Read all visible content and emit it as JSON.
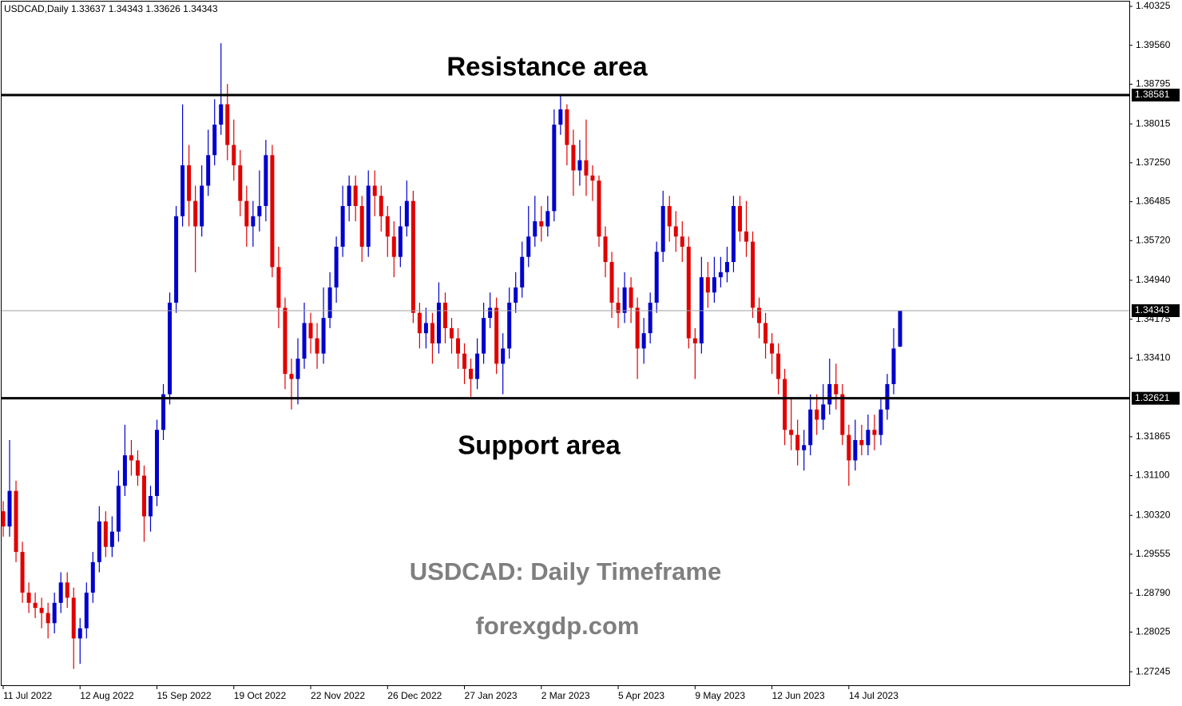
{
  "chart_data": {
    "type": "candlestick",
    "title": "USDCAD,Daily  1.33637 1.34343 1.33626 1.34343",
    "up_color": "#0000cc",
    "down_color": "#e00000",
    "categories": [
      "11 Jul 2022",
      null,
      null,
      null,
      null,
      null,
      null,
      null,
      null,
      null,
      null,
      null,
      "12 Aug 2022",
      null,
      null,
      null,
      null,
      null,
      null,
      null,
      null,
      null,
      null,
      null,
      "15 Sep 2022",
      null,
      null,
      null,
      null,
      null,
      null,
      null,
      null,
      null,
      null,
      null,
      "19 Oct 2022",
      null,
      null,
      null,
      null,
      null,
      null,
      null,
      null,
      null,
      null,
      null,
      "22 Nov 2022",
      null,
      null,
      null,
      null,
      null,
      null,
      null,
      null,
      null,
      null,
      null,
      "26 Dec 2022",
      null,
      null,
      null,
      null,
      null,
      null,
      null,
      null,
      null,
      null,
      null,
      "27 Jan 2023",
      null,
      null,
      null,
      null,
      null,
      null,
      null,
      null,
      null,
      null,
      null,
      "2 Mar 2023",
      null,
      null,
      null,
      null,
      null,
      null,
      null,
      null,
      null,
      null,
      null,
      "5 Apr 2023",
      null,
      null,
      null,
      null,
      null,
      null,
      null,
      null,
      null,
      null,
      null,
      "9 May 2023",
      null,
      null,
      null,
      null,
      null,
      null,
      null,
      null,
      null,
      null,
      null,
      "12 Jun 2023",
      null,
      null,
      null,
      null,
      null,
      null,
      null,
      null,
      null,
      null,
      null,
      "14 Jul 2023",
      null,
      null,
      null,
      null,
      null,
      null,
      null,
      null
    ],
    "open": [
      1.304,
      1.301,
      1.308,
      1.296,
      1.288,
      1.286,
      1.285,
      1.284,
      1.282,
      1.286,
      1.29,
      1.287,
      1.279,
      1.281,
      1.288,
      1.294,
      1.302,
      1.297,
      1.3,
      1.309,
      1.315,
      1.314,
      1.311,
      1.303,
      1.307,
      1.32,
      1.327,
      1.345,
      1.362,
      1.372,
      1.365,
      1.36,
      1.368,
      1.374,
      1.38,
      1.384,
      1.376,
      1.372,
      1.365,
      1.36,
      1.362,
      1.364,
      1.374,
      1.352,
      1.344,
      1.331,
      1.33,
      1.334,
      1.341,
      1.338,
      1.335,
      1.342,
      1.348,
      1.356,
      1.364,
      1.368,
      1.364,
      1.356,
      1.368,
      1.366,
      1.362,
      1.358,
      1.354,
      1.36,
      1.365,
      1.343,
      1.339,
      1.341,
      1.337,
      1.345,
      1.34,
      1.338,
      1.335,
      1.332,
      1.33,
      1.335,
      1.342,
      1.344,
      1.333,
      1.336,
      1.345,
      1.348,
      1.354,
      1.358,
      1.361,
      1.36,
      1.363,
      1.38,
      1.383,
      1.376,
      1.371,
      1.373,
      1.37,
      1.369,
      1.358,
      1.353,
      1.345,
      1.343,
      1.348,
      1.344,
      1.336,
      1.339,
      1.345,
      1.355,
      1.364,
      1.36,
      1.358,
      1.356,
      1.338,
      1.337,
      1.35,
      1.347,
      1.35,
      1.351,
      1.353,
      1.364,
      1.359,
      1.357,
      1.344,
      1.341,
      1.337,
      1.335,
      1.33,
      1.32,
      1.319,
      1.316,
      1.317,
      1.324,
      1.322,
      1.325,
      1.329,
      1.327,
      1.319,
      1.314,
      1.318,
      1.317,
      1.32,
      1.319,
      1.324,
      1.329,
      1.33637
    ],
    "high": [
      1.306,
      1.318,
      1.31,
      1.298,
      1.29,
      1.288,
      1.287,
      1.286,
      1.288,
      1.292,
      1.292,
      1.289,
      1.283,
      1.29,
      1.296,
      1.305,
      1.304,
      1.303,
      1.312,
      1.321,
      1.318,
      1.316,
      1.313,
      1.309,
      1.322,
      1.329,
      1.347,
      1.364,
      1.384,
      1.376,
      1.368,
      1.372,
      1.379,
      1.385,
      1.396,
      1.388,
      1.381,
      1.375,
      1.368,
      1.365,
      1.371,
      1.377,
      1.376,
      1.356,
      1.346,
      1.334,
      1.338,
      1.345,
      1.343,
      1.341,
      1.348,
      1.351,
      1.358,
      1.368,
      1.37,
      1.37,
      1.366,
      1.371,
      1.371,
      1.368,
      1.364,
      1.361,
      1.364,
      1.369,
      1.367,
      1.345,
      1.344,
      1.343,
      1.349,
      1.347,
      1.342,
      1.34,
      1.337,
      1.334,
      1.338,
      1.345,
      1.347,
      1.346,
      1.339,
      1.348,
      1.351,
      1.357,
      1.364,
      1.366,
      1.364,
      1.366,
      1.383,
      1.386,
      1.384,
      1.379,
      1.377,
      1.381,
      1.372,
      1.37,
      1.36,
      1.355,
      1.348,
      1.351,
      1.35,
      1.346,
      1.342,
      1.347,
      1.357,
      1.367,
      1.366,
      1.363,
      1.361,
      1.358,
      1.34,
      1.354,
      1.353,
      1.354,
      1.354,
      1.356,
      1.366,
      1.366,
      1.365,
      1.359,
      1.346,
      1.343,
      1.339,
      1.337,
      1.332,
      1.326,
      1.322,
      1.32,
      1.327,
      1.327,
      1.329,
      1.334,
      1.333,
      1.329,
      1.321,
      1.322,
      1.321,
      1.323,
      1.323,
      1.326,
      1.331,
      1.34,
      1.34343
    ],
    "low": [
      1.299,
      1.299,
      1.294,
      1.286,
      1.284,
      1.283,
      1.281,
      1.279,
      1.28,
      1.284,
      1.285,
      1.273,
      1.274,
      1.279,
      1.286,
      1.292,
      1.295,
      1.295,
      1.298,
      1.307,
      1.311,
      1.309,
      1.298,
      1.3,
      1.305,
      1.318,
      1.325,
      1.343,
      1.36,
      1.36,
      1.351,
      1.358,
      1.366,
      1.372,
      1.378,
      1.373,
      1.369,
      1.362,
      1.356,
      1.356,
      1.359,
      1.361,
      1.35,
      1.34,
      1.328,
      1.324,
      1.325,
      1.332,
      1.335,
      1.332,
      1.333,
      1.34,
      1.345,
      1.354,
      1.361,
      1.361,
      1.353,
      1.354,
      1.362,
      1.359,
      1.354,
      1.35,
      1.352,
      1.358,
      1.341,
      1.336,
      1.336,
      1.333,
      1.335,
      1.337,
      1.335,
      1.332,
      1.329,
      1.3265,
      1.328,
      1.333,
      1.34,
      1.331,
      1.327,
      1.334,
      1.343,
      1.346,
      1.352,
      1.356,
      1.357,
      1.358,
      1.361,
      1.378,
      1.372,
      1.366,
      1.368,
      1.366,
      1.365,
      1.356,
      1.35,
      1.342,
      1.34,
      1.341,
      1.341,
      1.33,
      1.333,
      1.337,
      1.343,
      1.353,
      1.357,
      1.355,
      1.353,
      1.336,
      1.33,
      1.335,
      1.344,
      1.345,
      1.348,
      1.349,
      1.351,
      1.357,
      1.354,
      1.342,
      1.338,
      1.334,
      1.331,
      1.327,
      1.317,
      1.316,
      1.313,
      1.312,
      1.315,
      1.319,
      1.32,
      1.323,
      1.324,
      1.317,
      1.309,
      1.312,
      1.315,
      1.315,
      1.316,
      1.317,
      1.322,
      1.327,
      1.33626
    ],
    "close": [
      1.301,
      1.308,
      1.296,
      1.288,
      1.286,
      1.285,
      1.284,
      1.282,
      1.286,
      1.29,
      1.287,
      1.279,
      1.281,
      1.288,
      1.294,
      1.302,
      1.297,
      1.3,
      1.309,
      1.315,
      1.314,
      1.311,
      1.303,
      1.307,
      1.32,
      1.327,
      1.345,
      1.362,
      1.372,
      1.365,
      1.36,
      1.368,
      1.374,
      1.38,
      1.384,
      1.376,
      1.372,
      1.365,
      1.36,
      1.362,
      1.364,
      1.374,
      1.352,
      1.344,
      1.331,
      1.33,
      1.334,
      1.341,
      1.338,
      1.335,
      1.342,
      1.348,
      1.356,
      1.364,
      1.368,
      1.364,
      1.356,
      1.368,
      1.366,
      1.362,
      1.358,
      1.354,
      1.36,
      1.365,
      1.343,
      1.339,
      1.341,
      1.337,
      1.345,
      1.34,
      1.338,
      1.335,
      1.332,
      1.33,
      1.335,
      1.342,
      1.344,
      1.333,
      1.336,
      1.345,
      1.348,
      1.354,
      1.358,
      1.361,
      1.36,
      1.363,
      1.38,
      1.383,
      1.376,
      1.371,
      1.373,
      1.37,
      1.369,
      1.358,
      1.353,
      1.345,
      1.343,
      1.348,
      1.344,
      1.336,
      1.339,
      1.345,
      1.355,
      1.364,
      1.36,
      1.358,
      1.356,
      1.338,
      1.337,
      1.35,
      1.347,
      1.35,
      1.351,
      1.353,
      1.364,
      1.359,
      1.357,
      1.344,
      1.341,
      1.337,
      1.335,
      1.33,
      1.32,
      1.319,
      1.316,
      1.317,
      1.324,
      1.322,
      1.325,
      1.329,
      1.327,
      1.319,
      1.314,
      1.318,
      1.317,
      1.32,
      1.319,
      1.324,
      1.329,
      1.336,
      1.34343
    ],
    "ylim": [
      1.2698,
      1.4045
    ],
    "yticks": [
      1.40325,
      {
        "value": 1.3956,
        "label": "1.39560"
      },
      1.38795,
      1.38015,
      {
        "value": 1.3725,
        "label": "1.37250"
      },
      1.36485,
      {
        "value": 1.3572,
        "label": "1.35720"
      },
      {
        "value": 1.3494,
        "label": "1.34940"
      },
      1.34175,
      {
        "value": 1.3341,
        "label": "1.33410"
      },
      1.31865,
      {
        "value": 1.311,
        "label": "1.31100"
      },
      {
        "value": 1.3032,
        "label": "1.30320"
      },
      1.29555,
      {
        "value": 1.2879,
        "label": "1.28790"
      },
      1.28025,
      1.27245
    ],
    "levels": [
      1.38581,
      1.32621
    ],
    "last_price": 1.34343,
    "annotations": [
      "Resistance area",
      "Support area",
      "USDCAD: Daily Timeframe",
      "forexgdp.com"
    ]
  }
}
